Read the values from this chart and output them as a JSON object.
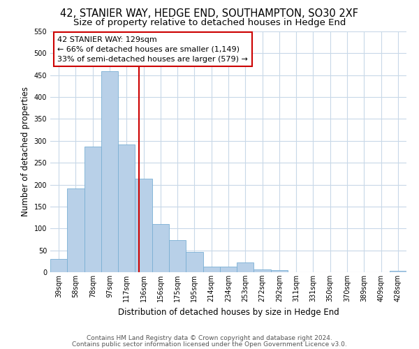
{
  "title": "42, STANIER WAY, HEDGE END, SOUTHAMPTON, SO30 2XF",
  "subtitle": "Size of property relative to detached houses in Hedge End",
  "xlabel": "Distribution of detached houses by size in Hedge End",
  "ylabel": "Number of detached properties",
  "bar_values": [
    30,
    192,
    287,
    459,
    291,
    213,
    110,
    74,
    46,
    13,
    13,
    22,
    7,
    4,
    0,
    0,
    0,
    0,
    0,
    0,
    3
  ],
  "bin_labels": [
    "39sqm",
    "58sqm",
    "78sqm",
    "97sqm",
    "117sqm",
    "136sqm",
    "156sqm",
    "175sqm",
    "195sqm",
    "214sqm",
    "234sqm",
    "253sqm",
    "272sqm",
    "292sqm",
    "311sqm",
    "331sqm",
    "350sqm",
    "370sqm",
    "389sqm",
    "409sqm",
    "428sqm"
  ],
  "bin_edges": [
    29.5,
    48.5,
    67.5,
    86.5,
    105.5,
    124.5,
    143.5,
    162.5,
    181.5,
    200.5,
    219.5,
    238.5,
    257.5,
    276.5,
    295.5,
    314.5,
    333.5,
    352.5,
    371.5,
    390.5,
    409.5,
    428.5
  ],
  "bar_color": "#b8d0e8",
  "bar_edge_color": "#7aafd4",
  "vline_x": 129,
  "vline_color": "#cc0000",
  "annotation_title": "42 STANIER WAY: 129sqm",
  "annotation_line1": "← 66% of detached houses are smaller (1,149)",
  "annotation_line2": "33% of semi-detached houses are larger (579) →",
  "annotation_box_color": "#ffffff",
  "annotation_box_edge": "#cc0000",
  "ylim": [
    0,
    550
  ],
  "yticks": [
    0,
    50,
    100,
    150,
    200,
    250,
    300,
    350,
    400,
    450,
    500,
    550
  ],
  "footer1": "Contains HM Land Registry data © Crown copyright and database right 2024.",
  "footer2": "Contains public sector information licensed under the Open Government Licence v3.0.",
  "background_color": "#ffffff",
  "grid_color": "#c8d8e8",
  "title_fontsize": 10.5,
  "subtitle_fontsize": 9.5,
  "axis_label_fontsize": 8.5,
  "tick_fontsize": 7,
  "footer_fontsize": 6.5,
  "annotation_fontsize": 8
}
